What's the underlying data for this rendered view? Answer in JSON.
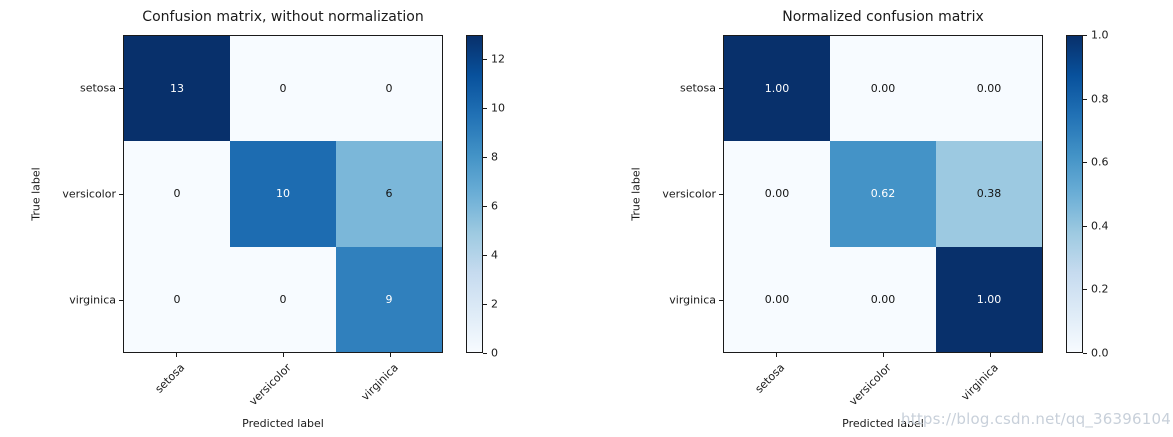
{
  "page": {
    "background": "#ffffff",
    "watermark": {
      "text": "https://blog.csdn.net/qq_36396104",
      "color": "#c8d0da"
    }
  },
  "style": {
    "colormap_name": "Blues",
    "colormap_stops": [
      "#f7fbff",
      "#deebf7",
      "#c6dbef",
      "#9ecae1",
      "#6baed6",
      "#4292c6",
      "#2171b5",
      "#08519c",
      "#08306b"
    ],
    "cell_text_light": "#ffffff",
    "cell_text_dark": "#151515",
    "axis_color": "#1a1a1a"
  },
  "chart_data": [
    {
      "type": "heatmap",
      "title": "Confusion matrix, without normalization",
      "xlabel": "Predicted label",
      "ylabel": "True label",
      "x_categories": [
        "setosa",
        "versicolor",
        "virginica"
      ],
      "y_categories": [
        "setosa",
        "versicolor",
        "virginica"
      ],
      "values": [
        [
          13,
          0,
          0
        ],
        [
          0,
          10,
          6
        ],
        [
          0,
          0,
          9
        ]
      ],
      "value_labels": [
        [
          "13",
          "0",
          "0"
        ],
        [
          "0",
          "10",
          "6"
        ],
        [
          "0",
          "0",
          "9"
        ]
      ],
      "vmin": 0,
      "vmax": 13,
      "colormap": "Blues",
      "grid": false,
      "legend_position": "colorbar-right",
      "colorbar_ticks": [
        {
          "value": 0,
          "label": "0"
        },
        {
          "value": 2,
          "label": "2"
        },
        {
          "value": 4,
          "label": "4"
        },
        {
          "value": 6,
          "label": "6"
        },
        {
          "value": 8,
          "label": "8"
        },
        {
          "value": 10,
          "label": "10"
        },
        {
          "value": 12,
          "label": "12"
        }
      ]
    },
    {
      "type": "heatmap",
      "title": "Normalized confusion matrix",
      "xlabel": "Predicted label",
      "ylabel": "True label",
      "x_categories": [
        "setosa",
        "versicolor",
        "virginica"
      ],
      "y_categories": [
        "setosa",
        "versicolor",
        "virginica"
      ],
      "values": [
        [
          1.0,
          0.0,
          0.0
        ],
        [
          0.0,
          0.62,
          0.38
        ],
        [
          0.0,
          0.0,
          1.0
        ]
      ],
      "value_labels": [
        [
          "1.00",
          "0.00",
          "0.00"
        ],
        [
          "0.00",
          "0.62",
          "0.38"
        ],
        [
          "0.00",
          "0.00",
          "1.00"
        ]
      ],
      "vmin": 0,
      "vmax": 1,
      "colormap": "Blues",
      "grid": false,
      "legend_position": "colorbar-right",
      "colorbar_ticks": [
        {
          "value": 0.0,
          "label": "0.0"
        },
        {
          "value": 0.2,
          "label": "0.2"
        },
        {
          "value": 0.4,
          "label": "0.4"
        },
        {
          "value": 0.6,
          "label": "0.6"
        },
        {
          "value": 0.8,
          "label": "0.8"
        },
        {
          "value": 1.0,
          "label": "1.0"
        }
      ]
    }
  ]
}
